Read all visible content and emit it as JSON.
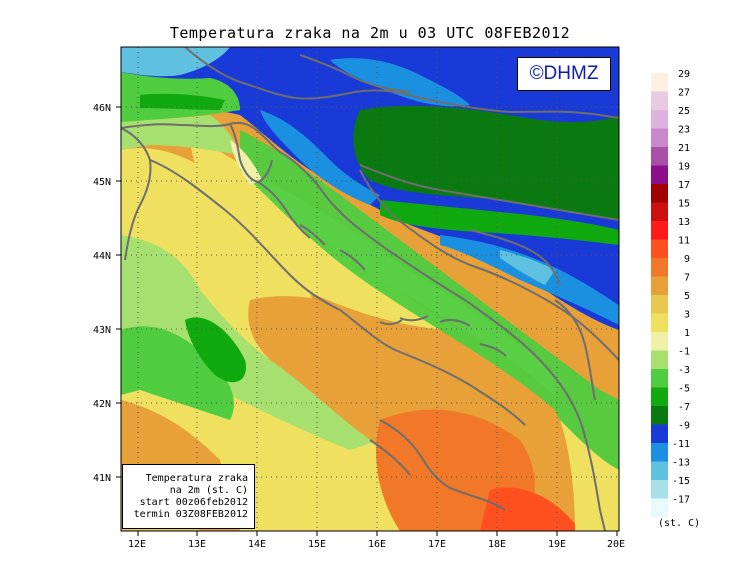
{
  "title": "Temperatura zraka na 2m u 03 UTC 08FEB2012",
  "copyright": "©DHMZ",
  "info": {
    "line1": "Temperatura zraka",
    "line2": "na 2m (st. C)",
    "line3": "start 00z06feb2012",
    "line4": "termin 03Z08FEB2012"
  },
  "axes": {
    "lon_labels": [
      "12E",
      "13E",
      "14E",
      "15E",
      "16E",
      "17E",
      "18E",
      "19E",
      "20E"
    ],
    "lat_labels": [
      "41N",
      "42N",
      "43N",
      "44N",
      "45N",
      "46N"
    ]
  },
  "colorbar": {
    "unit": "(st. C)",
    "labels": [
      "29",
      "27",
      "25",
      "23",
      "21",
      "19",
      "17",
      "15",
      "13",
      "11",
      "9",
      "7",
      "5",
      "3",
      "1",
      "-1",
      "-3",
      "-5",
      "-7",
      "-9",
      "-11",
      "-13",
      "-15",
      "-17"
    ],
    "colors": [
      "#fff1e2",
      "#e8cbe2",
      "#deb3de",
      "#cc88cc",
      "#a850a8",
      "#8c108c",
      "#a00000",
      "#cc1010",
      "#ff1a1a",
      "#ff5020",
      "#f07828",
      "#e8a038",
      "#e8c850",
      "#f0e060",
      "#f0f0a8",
      "#a8e070",
      "#50cc40",
      "#10aa10",
      "#0a7a10",
      "#1a3ad8",
      "#1c90e0",
      "#60c0e0",
      "#a8e0e8",
      "#e8fafc"
    ]
  }
}
